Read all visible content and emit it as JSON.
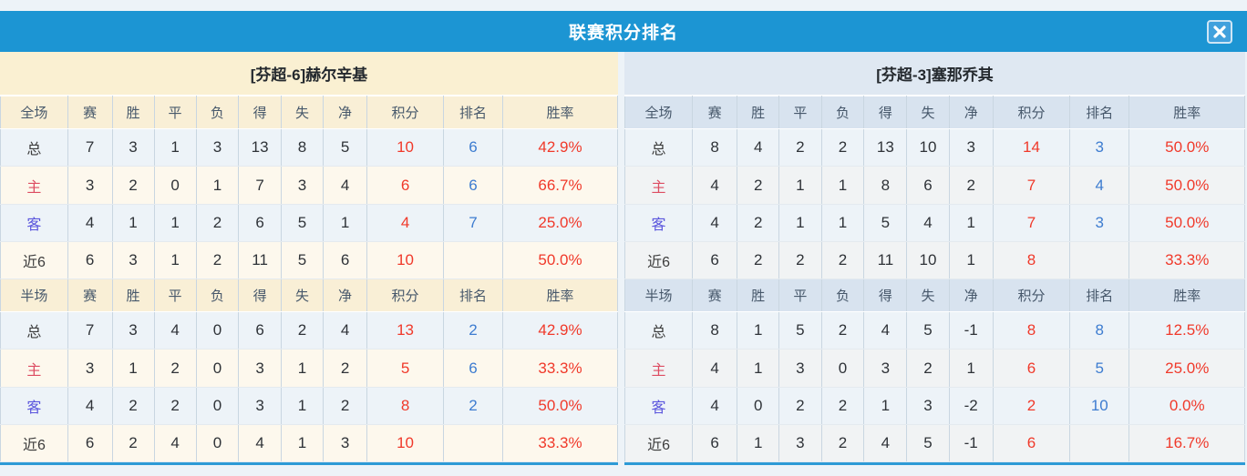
{
  "window": {
    "title": "联赛积分排名"
  },
  "colors": {
    "titlebar_blue": "#1c95d3",
    "points_red": "#f0392a",
    "rank_blue": "#3d7cd0",
    "home_label_red": "#dd4d62",
    "away_label_blue": "#5a55dd",
    "left_panel_tint": "#faf0d2",
    "right_panel_tint": "#dfe8f2"
  },
  "columns": {
    "full": [
      "全场",
      "赛",
      "胜",
      "平",
      "负",
      "得",
      "失",
      "净",
      "积分",
      "排名",
      "胜率"
    ],
    "half": [
      "半场",
      "赛",
      "胜",
      "平",
      "负",
      "得",
      "失",
      "净",
      "积分",
      "排名",
      "胜率"
    ]
  },
  "panels": [
    {
      "team": "[芬超-6]赫尔辛基",
      "full_rows": [
        [
          "总",
          "7",
          "3",
          "1",
          "3",
          "13",
          "8",
          "5",
          "10",
          "6",
          "42.9%"
        ],
        [
          "主",
          "3",
          "2",
          "0",
          "1",
          "7",
          "3",
          "4",
          "6",
          "6",
          "66.7%"
        ],
        [
          "客",
          "4",
          "1",
          "1",
          "2",
          "6",
          "5",
          "1",
          "4",
          "7",
          "25.0%"
        ],
        [
          "近6",
          "6",
          "3",
          "1",
          "2",
          "11",
          "5",
          "6",
          "10",
          "",
          "50.0%"
        ]
      ],
      "half_rows": [
        [
          "总",
          "7",
          "3",
          "4",
          "0",
          "6",
          "2",
          "4",
          "13",
          "2",
          "42.9%"
        ],
        [
          "主",
          "3",
          "1",
          "2",
          "0",
          "3",
          "1",
          "2",
          "5",
          "6",
          "33.3%"
        ],
        [
          "客",
          "4",
          "2",
          "2",
          "0",
          "3",
          "1",
          "2",
          "8",
          "2",
          "50.0%"
        ],
        [
          "近6",
          "6",
          "2",
          "4",
          "0",
          "4",
          "1",
          "3",
          "10",
          "",
          "33.3%"
        ]
      ]
    },
    {
      "team": "[芬超-3]塞那乔其",
      "full_rows": [
        [
          "总",
          "8",
          "4",
          "2",
          "2",
          "13",
          "10",
          "3",
          "14",
          "3",
          "50.0%"
        ],
        [
          "主",
          "4",
          "2",
          "1",
          "1",
          "8",
          "6",
          "2",
          "7",
          "4",
          "50.0%"
        ],
        [
          "客",
          "4",
          "2",
          "1",
          "1",
          "5",
          "4",
          "1",
          "7",
          "3",
          "50.0%"
        ],
        [
          "近6",
          "6",
          "2",
          "2",
          "2",
          "11",
          "10",
          "1",
          "8",
          "",
          "33.3%"
        ]
      ],
      "half_rows": [
        [
          "总",
          "8",
          "1",
          "5",
          "2",
          "4",
          "5",
          "-1",
          "8",
          "8",
          "12.5%"
        ],
        [
          "主",
          "4",
          "1",
          "3",
          "0",
          "3",
          "2",
          "1",
          "6",
          "5",
          "25.0%"
        ],
        [
          "客",
          "4",
          "0",
          "2",
          "2",
          "1",
          "3",
          "-2",
          "2",
          "10",
          "0.0%"
        ],
        [
          "近6",
          "6",
          "1",
          "3",
          "2",
          "4",
          "5",
          "-1",
          "6",
          "",
          "16.7%"
        ]
      ]
    }
  ]
}
